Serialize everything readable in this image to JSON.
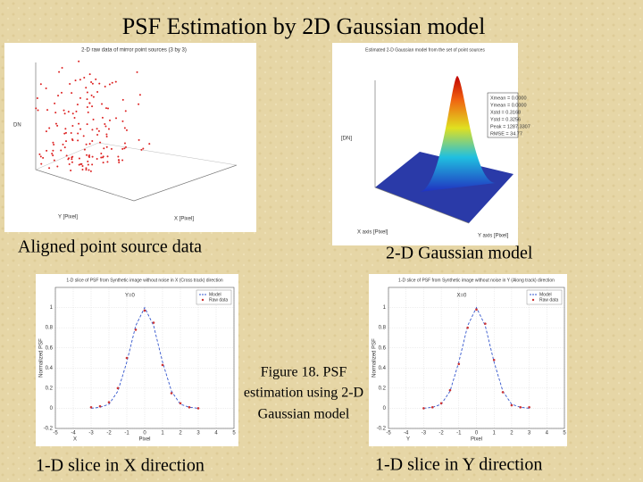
{
  "title": "PSF Estimation by 2D Gaussian model",
  "panels": [
    {
      "caption": "Aligned point source data",
      "plot_title": "2-D raw data of mirror point sources (3 by 3)",
      "axis_labels": [
        "DN",
        "Y [Pixel]",
        "X [Pixel]"
      ]
    },
    {
      "caption": "2-D Gaussian model",
      "plot_title": "Estimated 2-D Gaussian model from the set of point sources",
      "axis_labels": [
        "[DN]",
        "X axis [Pixel]",
        "Y axis [Pixel]"
      ],
      "stats": [
        "Xmean = 0.0000",
        "Ymean = 0.0000",
        "Xstd = 0.3168",
        "Ystd = 0.3256",
        "Peak = 1287.3307",
        "RMSE = 34.77"
      ]
    },
    {
      "caption": "1-D slice in X direction",
      "chart": {
        "type": "line",
        "title": "1-D slice of PSF from Synthetic image without noise in X (Cross track) direction",
        "annotation": "Y=0",
        "corner_label": "X",
        "x_label": "Pixel",
        "y_label": "Normalized PSF",
        "xlim": [
          -5,
          5
        ],
        "xticks": [
          -5,
          -4,
          -3,
          -2,
          -1,
          0,
          1,
          2,
          3,
          4,
          5
        ],
        "ylim": [
          -0.2,
          1.2
        ],
        "yticks": [
          -0.2,
          0,
          0.2,
          0.4,
          0.6,
          0.8,
          1
        ],
        "grid": true,
        "legend": "upper-right",
        "x": [
          -3,
          -2.5,
          -2,
          -1.5,
          -1,
          -0.5,
          0,
          0.5,
          1,
          1.5,
          2,
          2.5,
          3
        ],
        "series": [
          {
            "name": "Model",
            "color": "#3355cc",
            "style": "dashed",
            "values": [
              0,
              0.01,
              0.04,
              0.17,
              0.46,
              0.82,
              1,
              0.82,
              0.46,
              0.17,
              0.04,
              0.01,
              0
            ]
          },
          {
            "name": "Raw data",
            "color": "#cc3333",
            "style": "points",
            "values": [
              0.01,
              0.02,
              0.06,
              0.2,
              0.5,
              0.78,
              0.97,
              0.85,
              0.43,
              0.15,
              0.05,
              0.01,
              0
            ]
          }
        ]
      }
    },
    {
      "caption": "1-D slice in Y direction",
      "chart": {
        "type": "line",
        "title": "1-D slice of PSF from Synthetic image without noise in Y (Along track) direction",
        "annotation": "X=0",
        "corner_label": "Y",
        "x_label": "Pixel",
        "y_label": "Normalized PSF",
        "xlim": [
          -5,
          5
        ],
        "xticks": [
          -5,
          -4,
          -3,
          -2,
          -1,
          0,
          1,
          2,
          3,
          4,
          5
        ],
        "ylim": [
          -0.2,
          1.2
        ],
        "yticks": [
          -0.2,
          0,
          0.2,
          0.4,
          0.6,
          0.8,
          1
        ],
        "grid": true,
        "legend": "upper-right",
        "x": [
          -3,
          -2.5,
          -2,
          -1.5,
          -1,
          -0.5,
          0,
          0.5,
          1,
          1.5,
          2,
          2.5,
          3
        ],
        "series": [
          {
            "name": "Model",
            "color": "#3355cc",
            "style": "dashed",
            "values": [
              0,
              0.01,
              0.04,
              0.17,
              0.46,
              0.82,
              1,
              0.82,
              0.46,
              0.17,
              0.04,
              0.01,
              0
            ]
          },
          {
            "name": "Raw data",
            "color": "#cc3333",
            "style": "points",
            "values": [
              0,
              0.01,
              0.05,
              0.18,
              0.44,
              0.8,
              0.98,
              0.84,
              0.48,
              0.16,
              0.03,
              0.01,
              0.01
            ]
          }
        ]
      }
    }
  ],
  "figure_caption": [
    "Figure 18. PSF",
    "estimation using 2-D",
    "Gaussian model"
  ]
}
